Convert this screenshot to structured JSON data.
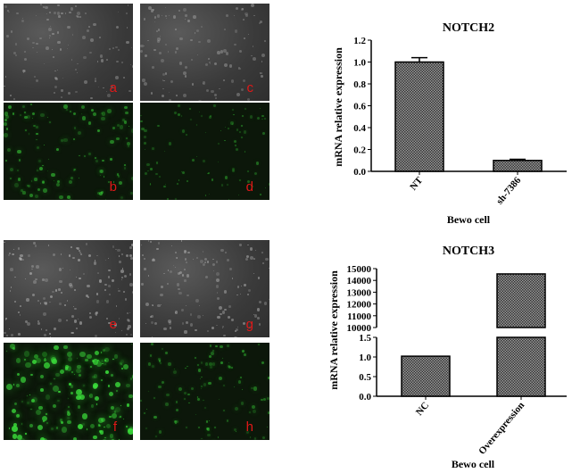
{
  "panels": [
    {
      "label": "a",
      "kind": "brightfield",
      "intensity": 0.5
    },
    {
      "label": "b",
      "kind": "fluorescence",
      "intensity": 0.55
    },
    {
      "label": "c",
      "kind": "brightfield",
      "intensity": 0.5
    },
    {
      "label": "d",
      "kind": "fluorescence",
      "intensity": 0.3
    },
    {
      "label": "e",
      "kind": "brightfield",
      "intensity": 0.9
    },
    {
      "label": "f",
      "kind": "fluorescence",
      "intensity": 1.0
    },
    {
      "label": "g",
      "kind": "brightfield",
      "intensity": 0.7
    },
    {
      "label": "h",
      "kind": "fluorescence",
      "intensity": 0.45
    }
  ],
  "colors": {
    "bar_fill": "#555555",
    "label_red": "#e01818",
    "fluor_green": "#3ce03c"
  },
  "chart_data": [
    {
      "type": "bar",
      "title": "NOTCH2",
      "xlabel": "Bewo cell",
      "ylabel": "mRNA relative expression",
      "categories": [
        "NT",
        "sh-7386"
      ],
      "values": [
        1.0,
        0.1
      ],
      "errors": [
        0.04,
        0.01
      ],
      "ylim": [
        0,
        1.2
      ],
      "yticks": [
        "0.0",
        "0.2",
        "0.4",
        "0.6",
        "0.8",
        "1.0",
        "1.2"
      ],
      "grid": false
    },
    {
      "type": "bar",
      "title": "NOTCH3",
      "xlabel": "Bewo cell",
      "ylabel": "mRNA relative expression",
      "categories": [
        "NC",
        "Overexpression"
      ],
      "values": [
        1.02,
        14550
      ],
      "axis_break": {
        "lower": [
          0,
          1.5
        ],
        "upper": [
          10000,
          15000
        ]
      },
      "yticks_lower": [
        "0.0",
        "0.5",
        "1.0",
        "1.5"
      ],
      "yticks_upper": [
        "10000",
        "11000",
        "12000",
        "13000",
        "14000",
        "15000"
      ],
      "grid": false
    }
  ]
}
